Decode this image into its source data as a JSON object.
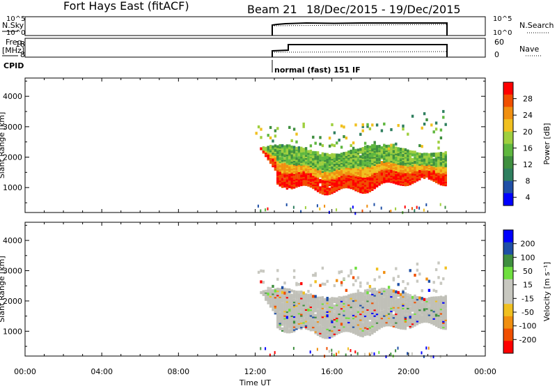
{
  "header": {
    "station": "Fort Hays East (fitACF)",
    "beam": "Beam 21",
    "date_range": "18/Dec/2015 - 19/Dec/2015"
  },
  "top_panels": {
    "nsky_label": "N.Sky",
    "nsky_ticks": [
      "10^5",
      "10^0"
    ],
    "nsearch_label": "N.Search",
    "nsearch_ticks": [
      "10^5",
      "10^0"
    ],
    "freq_label": "Freq.",
    "freq_unit": "[MHz]",
    "freq_ticks": [
      "18",
      "8"
    ],
    "nave_label": "Nave",
    "nave_ticks": [
      "60",
      "0"
    ],
    "cpid_label": "CPID",
    "cpid_text": "normal (fast) 151 IF"
  },
  "colors": {
    "power": [
      "#0000ff",
      "#1f4fa6",
      "#2f7f5f",
      "#3f8f3f",
      "#5fb73f",
      "#9fcf3f",
      "#f0c020",
      "#f08f10",
      "#f04f00",
      "#ff0000"
    ],
    "velocity": [
      "#ff0000",
      "#f04f00",
      "#f08f10",
      "#f0c020",
      "#c8c8c0",
      "#c8c8c0",
      "#6fdf3f",
      "#3f8f3f",
      "#1f4fa6",
      "#0000ff"
    ],
    "gray": "#c0c0b8"
  },
  "chart_data": [
    {
      "type": "heatmap",
      "name": "power",
      "ylabel": "Slant Range [km]",
      "xlabel": "Time UT",
      "x_ticks": [
        "00:00",
        "04:00",
        "08:00",
        "12:00",
        "16:00",
        "20:00",
        "00:00"
      ],
      "y_ticks": [
        1000,
        2000,
        3000,
        4000
      ],
      "ylim": [
        180,
        4600
      ],
      "colorbar_label": "Power [dB]",
      "colorbar_ticks": [
        "28",
        "24",
        "20",
        "16",
        "12",
        "8",
        "4"
      ],
      "colorbar_range": [
        0,
        30
      ],
      "data_start_hour": 12.0,
      "data_end_hour": 21.9
    },
    {
      "type": "heatmap",
      "name": "velocity",
      "ylabel": "Slant Range [km]",
      "xlabel": "Time UT",
      "x_ticks": [
        "00:00",
        "04:00",
        "08:00",
        "12:00",
        "16:00",
        "20:00",
        "00:00"
      ],
      "y_ticks": [
        1000,
        2000,
        3000,
        4000
      ],
      "ylim": [
        180,
        4600
      ],
      "colorbar_label": "Velocity [m s⁻¹]",
      "colorbar_ticks": [
        "200",
        "100",
        "50",
        "15",
        "-15",
        "-50",
        "-100",
        "-200"
      ],
      "colorbar_range": [
        -250,
        250
      ],
      "data_start_hour": 12.0,
      "data_end_hour": 21.9
    }
  ]
}
